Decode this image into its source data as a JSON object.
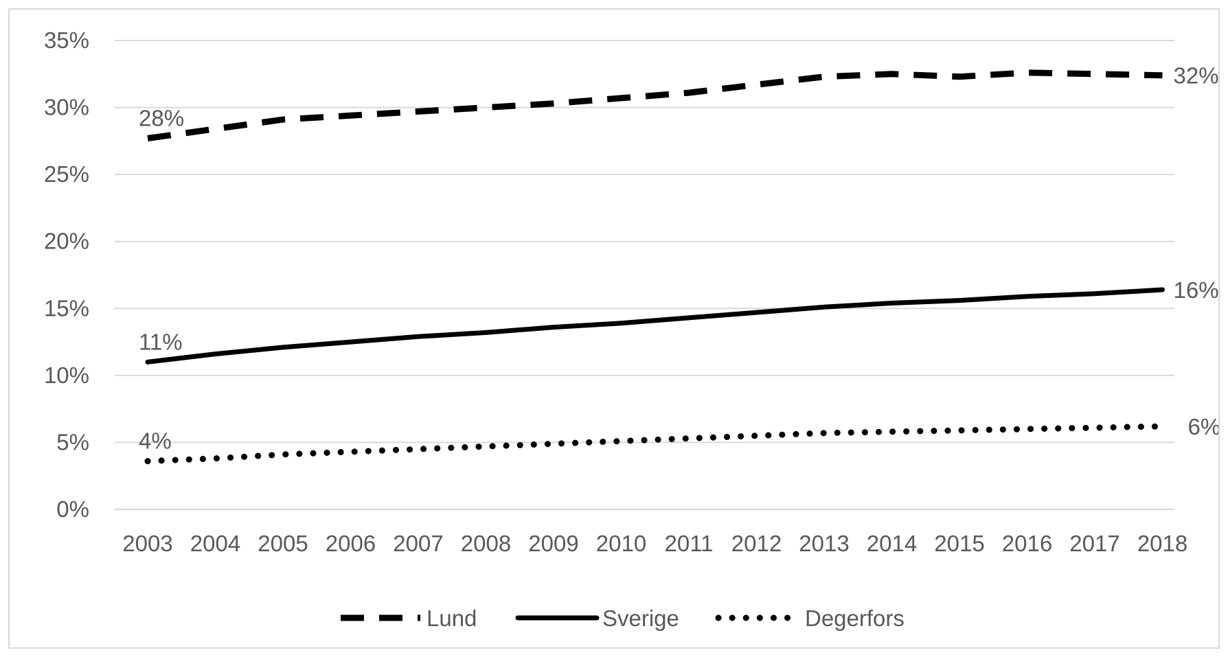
{
  "chart_data": {
    "type": "line",
    "x": [
      "2003",
      "2004",
      "2005",
      "2006",
      "2007",
      "2008",
      "2009",
      "2010",
      "2011",
      "2012",
      "2013",
      "2014",
      "2015",
      "2016",
      "2017",
      "2018"
    ],
    "ylim": [
      0,
      0.35
    ],
    "yticks": [
      "0%",
      "5%",
      "10%",
      "15%",
      "20%",
      "25%",
      "30%",
      "35%"
    ],
    "grid": true,
    "legend_position": "bottom",
    "series": [
      {
        "name": "Lund",
        "style": "dashed",
        "values": [
          0.277,
          0.284,
          0.291,
          0.294,
          0.297,
          0.3,
          0.303,
          0.307,
          0.311,
          0.317,
          0.323,
          0.325,
          0.323,
          0.326,
          0.325,
          0.324
        ],
        "start_label": "28%",
        "end_label": "32%"
      },
      {
        "name": "Sverige",
        "style": "solid",
        "values": [
          0.11,
          0.116,
          0.121,
          0.125,
          0.129,
          0.132,
          0.136,
          0.139,
          0.143,
          0.147,
          0.151,
          0.154,
          0.156,
          0.159,
          0.161,
          0.164
        ],
        "start_label": "11%",
        "end_label": "16%"
      },
      {
        "name": "Degerfors",
        "style": "dotted",
        "values": [
          0.036,
          0.038,
          0.041,
          0.043,
          0.045,
          0.047,
          0.049,
          0.051,
          0.053,
          0.055,
          0.057,
          0.058,
          0.059,
          0.06,
          0.061,
          0.062
        ],
        "start_label": "4%",
        "end_label": "6%"
      }
    ],
    "colors": {
      "line": "#000000",
      "grid": "#d9d9d9",
      "text": "#595959"
    }
  }
}
